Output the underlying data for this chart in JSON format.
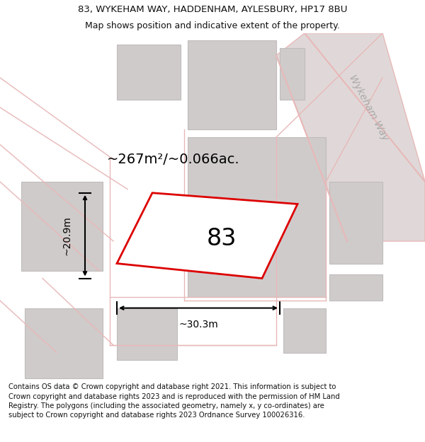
{
  "title_line1": "83, WYKEHAM WAY, HADDENHAM, AYLESBURY, HP17 8BU",
  "title_line2": "Map shows position and indicative extent of the property.",
  "footer_text": "Contains OS data © Crown copyright and database right 2021. This information is subject to Crown copyright and database rights 2023 and is reproduced with the permission of HM Land Registry. The polygons (including the associated geometry, namely x, y co-ordinates) are subject to Crown copyright and database rights 2023 Ordnance Survey 100026316.",
  "area_label": "~267m²/~0.066ac.",
  "number_label": "83",
  "width_label": "~30.3m",
  "height_label": "~20.9m",
  "road_label": "Wykeham Way",
  "bg_color": "#ffffff",
  "map_bg": "#ede9e9",
  "building_color": "#d0cbcb",
  "road_line_color": "#e8b8b8",
  "plot_outline_color": "#dd0000",
  "dim_line_color": "#000000",
  "title_fontsize": 9.5,
  "footer_fontsize": 7.2,
  "area_fontsize": 14,
  "number_fontsize": 24,
  "road_label_fontsize": 10,
  "dim_fontsize": 10
}
